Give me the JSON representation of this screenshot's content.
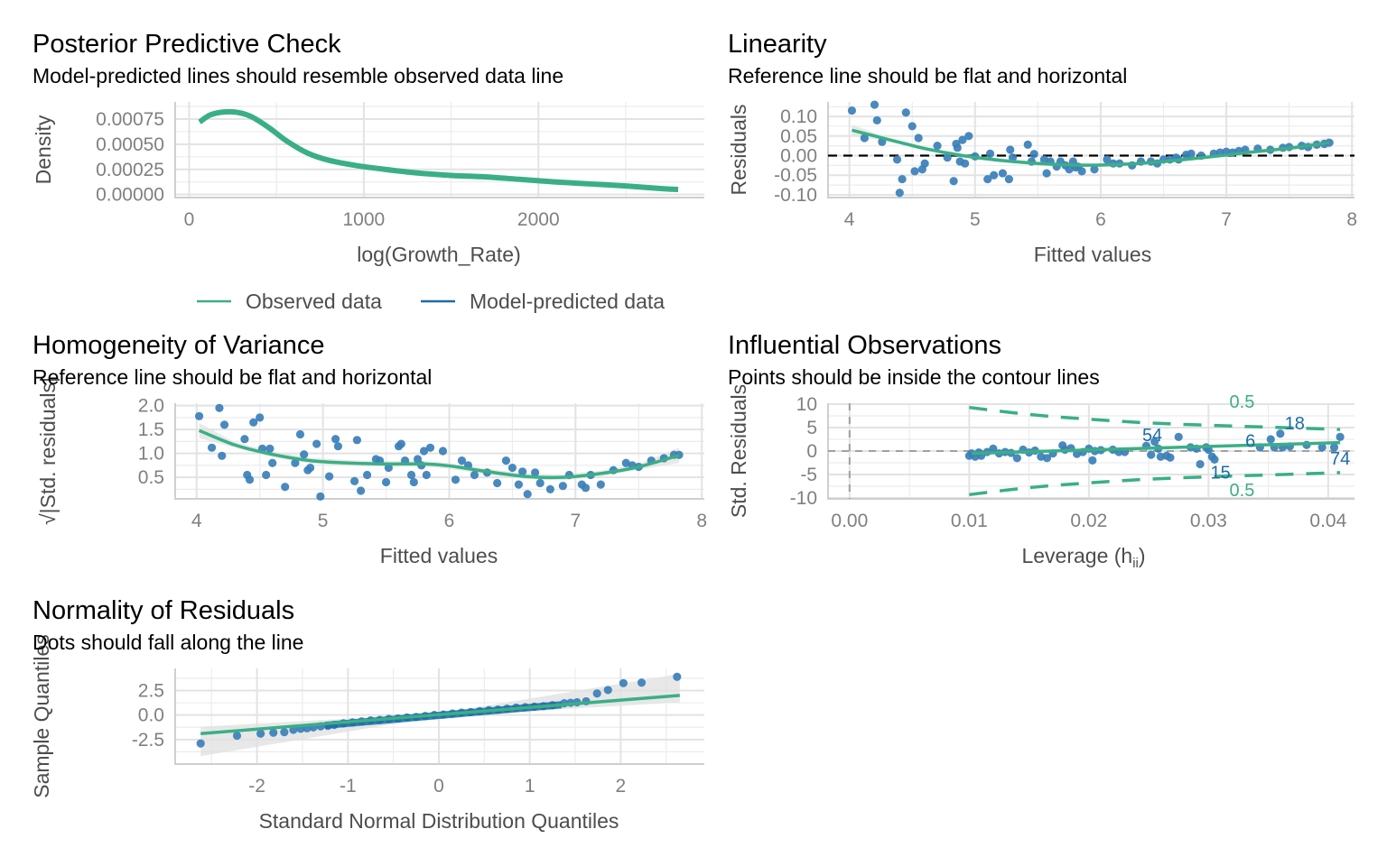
{
  "colors": {
    "observed": "#3aaf85",
    "predicted": "#1b6ca8",
    "points": "#3a7fb9",
    "ribbon": "#e0e0e0",
    "reference": "#000000",
    "contour": "#3aaf85",
    "label": "#1b6ca8"
  },
  "chart_data": [
    {
      "id": "ppc",
      "type": "line",
      "title": "Posterior Predictive Check",
      "subtitle": "Model-predicted lines should resemble observed data line",
      "xlabel": "log(Growth_Rate)",
      "ylabel": "Density",
      "xlim": [
        -80,
        2950
      ],
      "ylim": [
        -3e-05,
        0.00092
      ],
      "xticks": [
        0,
        1000,
        2000
      ],
      "xtick_labels": [
        "0",
        "1000",
        "2000"
      ],
      "yticks": [
        0,
        0.00025,
        0.0005,
        0.00075
      ],
      "ytick_labels": [
        "0.00000",
        "0.00025",
        "0.00050",
        "0.00075"
      ],
      "legend": {
        "position": "bottom",
        "entries": [
          {
            "label": "Observed data",
            "color_key": "observed"
          },
          {
            "label": "Model-predicted data",
            "color_key": "predicted"
          }
        ]
      },
      "series": [
        {
          "name": "Model-predicted data",
          "color_key": "predicted",
          "x": [
            60,
            120,
            200,
            280,
            360,
            460,
            560,
            680,
            800,
            950,
            1100,
            1300,
            1500,
            1700,
            1900,
            2100,
            2300,
            2500,
            2700,
            2800
          ],
          "y": [
            0.00072,
            0.00079,
            0.00082,
            0.000815,
            0.00077,
            0.00066,
            0.00053,
            0.00041,
            0.00034,
            0.00029,
            0.000255,
            0.000215,
            0.00019,
            0.000175,
            0.00015,
            0.000125,
            0.000105,
            8.5e-05,
            6e-05,
            5e-05
          ]
        },
        {
          "name": "Observed data",
          "color_key": "observed",
          "x": [
            60,
            120,
            200,
            280,
            360,
            460,
            560,
            680,
            800,
            950,
            1100,
            1300,
            1500,
            1700,
            1900,
            2100,
            2300,
            2500,
            2700,
            2800
          ],
          "y": [
            0.00072,
            0.00079,
            0.00082,
            0.000815,
            0.00077,
            0.00066,
            0.00053,
            0.00041,
            0.00034,
            0.00029,
            0.000255,
            0.000215,
            0.00019,
            0.000175,
            0.00015,
            0.000125,
            0.000105,
            8.5e-05,
            6e-05,
            5e-05
          ]
        }
      ]
    },
    {
      "id": "linearity",
      "type": "scatter",
      "title": "Linearity",
      "subtitle": "Reference line should be flat and horizontal",
      "xlabel": "Fitted values",
      "ylabel": "Residuals",
      "xlim": [
        3.83,
        8.02
      ],
      "ylim": [
        -0.107,
        0.137
      ],
      "xticks": [
        4,
        5,
        6,
        7,
        8
      ],
      "xtick_labels": [
        "4",
        "5",
        "6",
        "7",
        "8"
      ],
      "yticks": [
        -0.1,
        -0.05,
        0,
        0.05,
        0.1
      ],
      "ytick_labels": [
        "-0.10",
        "-0.05",
        "0.00",
        "0.05",
        "0.10"
      ],
      "reference_y": 0,
      "points": {
        "x": [
          4.02,
          4.2,
          4.22,
          4.12,
          4.26,
          4.42,
          4.38,
          4.4,
          4.45,
          4.5,
          4.55,
          4.52,
          4.58,
          4.6,
          4.7,
          4.78,
          4.83,
          4.86,
          4.88,
          4.9,
          4.92,
          4.95,
          4.85,
          5.0,
          5.1,
          5.12,
          5.15,
          5.22,
          5.27,
          5.28,
          5.3,
          5.42,
          5.45,
          5.47,
          5.55,
          5.57,
          5.6,
          5.65,
          5.68,
          5.72,
          5.75,
          5.78,
          5.8,
          5.82,
          5.85,
          5.95,
          6.05,
          6.1,
          6.15,
          6.25,
          6.32,
          6.4,
          6.45,
          6.5,
          6.55,
          6.6,
          6.62,
          6.68,
          6.72,
          6.8,
          6.9,
          6.95,
          7.0,
          7.05,
          7.1,
          7.15,
          7.25,
          7.35,
          7.45,
          7.5,
          7.6,
          7.65,
          7.72,
          7.78,
          7.82
        ],
        "y": [
          0.115,
          0.13,
          0.09,
          0.045,
          0.035,
          -0.06,
          -0.01,
          -0.095,
          0.11,
          0.075,
          0.045,
          -0.04,
          -0.035,
          -0.02,
          0.025,
          -0.005,
          -0.065,
          0.02,
          -0.015,
          0.04,
          -0.02,
          0.05,
          0.03,
          -0.002,
          -0.06,
          0.005,
          -0.05,
          -0.045,
          -0.06,
          0.015,
          -0.005,
          0.028,
          -0.015,
          0.004,
          -0.01,
          -0.045,
          -0.015,
          -0.028,
          -0.015,
          -0.025,
          -0.035,
          -0.015,
          -0.03,
          -0.028,
          -0.04,
          -0.035,
          -0.01,
          -0.02,
          -0.02,
          -0.025,
          -0.015,
          -0.015,
          -0.02,
          -0.01,
          -0.01,
          -0.005,
          -0.01,
          0.002,
          0.005,
          0.0,
          0.005,
          0.008,
          0.01,
          0.008,
          0.012,
          0.015,
          0.018,
          0.015,
          0.02,
          0.022,
          0.025,
          0.022,
          0.028,
          0.03,
          0.033
        ]
      },
      "smooth": {
        "x": [
          4.02,
          4.3,
          4.6,
          4.9,
          5.2,
          5.5,
          5.8,
          6.0,
          6.3,
          6.6,
          6.9,
          7.2,
          7.5,
          7.82
        ],
        "y": [
          0.065,
          0.042,
          0.018,
          0.0,
          -0.012,
          -0.02,
          -0.024,
          -0.024,
          -0.02,
          -0.012,
          -0.002,
          0.009,
          0.019,
          0.033
        ],
        "band": 0.01
      }
    },
    {
      "id": "homogeneity",
      "type": "scatter",
      "title": "Homogeneity of Variance",
      "subtitle": "Reference line should be flat and horizontal",
      "xlabel": "Fitted values",
      "ylabel": "√|Std. residuals|",
      "xlim": [
        3.83,
        8.02
      ],
      "ylim": [
        0.05,
        2.05
      ],
      "xticks": [
        4,
        5,
        6,
        7,
        8
      ],
      "xtick_labels": [
        "4",
        "5",
        "6",
        "7",
        "8"
      ],
      "yticks": [
        0.5,
        1.0,
        1.5,
        2.0
      ],
      "ytick_labels": [
        "0.5",
        "1.0",
        "1.5",
        "2.0"
      ],
      "points": {
        "x": [
          4.02,
          4.12,
          4.18,
          4.2,
          4.22,
          4.38,
          4.4,
          4.42,
          4.45,
          4.5,
          4.52,
          4.55,
          4.58,
          4.6,
          4.7,
          4.78,
          4.82,
          4.85,
          4.88,
          4.9,
          4.95,
          4.98,
          5.05,
          5.1,
          5.12,
          5.25,
          5.27,
          5.3,
          5.35,
          5.42,
          5.45,
          5.5,
          5.52,
          5.6,
          5.62,
          5.65,
          5.7,
          5.72,
          5.75,
          5.78,
          5.8,
          5.82,
          5.85,
          5.95,
          6.05,
          6.1,
          6.15,
          6.2,
          6.3,
          6.38,
          6.45,
          6.5,
          6.55,
          6.58,
          6.62,
          6.68,
          6.72,
          6.8,
          6.9,
          6.95,
          7.05,
          7.08,
          7.12,
          7.2,
          7.3,
          7.4,
          7.45,
          7.5,
          7.6,
          7.7,
          7.78,
          7.82
        ],
        "y": [
          1.78,
          1.12,
          1.95,
          0.95,
          1.6,
          1.3,
          0.55,
          0.45,
          1.65,
          1.75,
          1.1,
          0.55,
          1.1,
          0.8,
          0.3,
          0.8,
          1.4,
          0.98,
          0.65,
          0.7,
          1.2,
          0.1,
          0.52,
          1.3,
          1.15,
          0.42,
          1.28,
          0.22,
          0.55,
          0.88,
          0.85,
          0.4,
          0.7,
          1.15,
          1.2,
          0.85,
          0.55,
          0.4,
          0.88,
          0.75,
          1.05,
          0.55,
          1.12,
          1.05,
          0.45,
          0.85,
          0.75,
          0.55,
          0.6,
          0.38,
          0.85,
          0.7,
          0.35,
          0.62,
          0.15,
          0.6,
          0.38,
          0.25,
          0.32,
          0.55,
          0.35,
          0.28,
          0.55,
          0.35,
          0.65,
          0.8,
          0.75,
          0.72,
          0.85,
          0.9,
          0.97,
          0.97
        ]
      },
      "smooth": {
        "x": [
          4.02,
          4.3,
          4.6,
          4.9,
          5.2,
          5.5,
          5.8,
          6.0,
          6.3,
          6.6,
          6.9,
          7.2,
          7.5,
          7.82
        ],
        "y": [
          1.48,
          1.18,
          0.98,
          0.85,
          0.8,
          0.78,
          0.78,
          0.74,
          0.62,
          0.52,
          0.5,
          0.58,
          0.72,
          0.96
        ],
        "band": 0.1
      }
    },
    {
      "id": "influential",
      "type": "scatter",
      "title": "Influential Observations",
      "subtitle": "Points should be inside the contour lines",
      "xlabel": "Leverage (h",
      "xlabel_sub": "ii",
      "xlabel_close": ")",
      "ylabel": "Std. Residuals",
      "xlim": [
        -0.0018,
        0.0422
      ],
      "ylim": [
        -10.2,
        10.2
      ],
      "xticks": [
        0,
        0.01,
        0.02,
        0.03,
        0.04
      ],
      "xtick_labels": [
        "0.00",
        "0.01",
        "0.02",
        "0.03",
        "0.04"
      ],
      "yticks": [
        -10,
        -5,
        0,
        5,
        10
      ],
      "ytick_labels": [
        "-10",
        "-5",
        "0",
        "5",
        "10"
      ],
      "reference_x": 0,
      "reference_y": 0,
      "contours": {
        "label": "0.5",
        "x": [
          0.01,
          0.015,
          0.02,
          0.025,
          0.03,
          0.035,
          0.041
        ],
        "upper": [
          9.3,
          7.8,
          6.8,
          6.0,
          5.5,
          5.1,
          4.6
        ],
        "lower": [
          -9.3,
          -7.8,
          -6.8,
          -6.0,
          -5.5,
          -5.1,
          -4.6
        ]
      },
      "points": {
        "x": [
          0.01,
          0.0102,
          0.0105,
          0.0108,
          0.011,
          0.0115,
          0.012,
          0.0125,
          0.013,
          0.0135,
          0.014,
          0.0145,
          0.015,
          0.0155,
          0.016,
          0.0165,
          0.017,
          0.0178,
          0.018,
          0.0185,
          0.019,
          0.0195,
          0.02,
          0.0203,
          0.0205,
          0.021,
          0.022,
          0.0225,
          0.023,
          0.0248,
          0.0252,
          0.0255,
          0.0258,
          0.026,
          0.0265,
          0.0268,
          0.0275,
          0.0285,
          0.029,
          0.0293,
          0.0298,
          0.03,
          0.0303,
          0.0305,
          0.0343,
          0.0352,
          0.0355,
          0.036,
          0.0362,
          0.0368,
          0.0382,
          0.0395,
          0.0405,
          0.041
        ],
        "y": [
          -1.0,
          -0.5,
          -1.2,
          -0.3,
          -1.0,
          -0.2,
          0.5,
          -0.5,
          -0.2,
          -0.4,
          -1.5,
          0.3,
          -0.3,
          0.1,
          -1.2,
          -1.5,
          -0.5,
          1.2,
          0.3,
          0.6,
          -0.6,
          -0.2,
          0.5,
          -2.0,
          0.0,
          0.2,
          0.3,
          -0.2,
          -0.2,
          1.1,
          -0.8,
          2.0,
          0.5,
          -1.2,
          -1.0,
          -1.4,
          3.0,
          0.8,
          0.5,
          -2.8,
          0.8,
          0.3,
          -1.2,
          -1.8,
          0.8,
          2.5,
          0.8,
          3.7,
          0.8,
          1.0,
          1.3,
          0.8,
          0.8,
          3.0
        ]
      },
      "smooth": {
        "x": [
          0.0102,
          0.041
        ],
        "y": [
          -0.5,
          1.8
        ]
      },
      "point_labels": [
        {
          "text": "54",
          "x": 0.0253,
          "y": 3.5
        },
        {
          "text": "18",
          "x": 0.0372,
          "y": 6.0
        },
        {
          "text": "6",
          "x": 0.0335,
          "y": 2.2
        },
        {
          "text": "74",
          "x": 0.041,
          "y": -1.5
        },
        {
          "text": "15",
          "x": 0.031,
          "y": -4.5
        }
      ]
    },
    {
      "id": "normality",
      "type": "scatter",
      "title": "Normality of Residuals",
      "subtitle": "Dots should fall along the line",
      "xlabel": "Standard Normal Distribution Quantiles",
      "ylabel": "Sample Quantiles",
      "xlim": [
        -2.9,
        2.92
      ],
      "ylim": [
        -5.0,
        4.75
      ],
      "xticks": [
        -2,
        -1,
        0,
        1,
        2
      ],
      "xtick_labels": [
        "-2",
        "-1",
        "0",
        "1",
        "2"
      ],
      "yticks": [
        -2.5,
        0,
        2.5
      ],
      "ytick_labels": [
        "-2.5",
        "0.0",
        "2.5"
      ],
      "line": {
        "x": [
          -2.62,
          2.65
        ],
        "y": [
          -1.9,
          2.0
        ]
      },
      "band": {
        "x": [
          -2.62,
          0,
          2.65
        ],
        "upper": [
          -1.2,
          0.15,
          4.2
        ],
        "lower": [
          -4.2,
          -0.15,
          1.3
        ]
      },
      "points": {
        "x": [
          -2.62,
          -2.22,
          -1.96,
          -1.82,
          -1.7,
          -1.6,
          -1.52,
          -1.45,
          -1.38,
          -1.3,
          -1.22,
          -1.15,
          -1.05,
          -0.95,
          -0.85,
          -0.75,
          -0.65,
          -0.55,
          -0.45,
          -0.35,
          -0.25,
          -0.15,
          -0.05,
          0.05,
          0.15,
          0.25,
          0.35,
          0.45,
          0.55,
          0.65,
          0.75,
          0.85,
          0.95,
          1.05,
          1.15,
          1.25,
          1.38,
          1.45,
          1.52,
          1.62,
          1.74,
          1.86,
          2.03,
          2.23,
          2.62
        ],
        "y": [
          -2.9,
          -2.1,
          -1.9,
          -1.8,
          -1.75,
          -1.5,
          -1.4,
          -1.35,
          -1.25,
          -1.15,
          -1.1,
          -1.0,
          -0.85,
          -0.75,
          -0.65,
          -0.55,
          -0.5,
          -0.4,
          -0.35,
          -0.25,
          -0.2,
          -0.1,
          0.0,
          0.05,
          0.15,
          0.25,
          0.3,
          0.4,
          0.5,
          0.55,
          0.65,
          0.75,
          0.8,
          0.85,
          0.9,
          1.0,
          1.2,
          1.25,
          1.3,
          1.4,
          2.2,
          2.55,
          3.25,
          3.3,
          3.9
        ]
      }
    }
  ]
}
